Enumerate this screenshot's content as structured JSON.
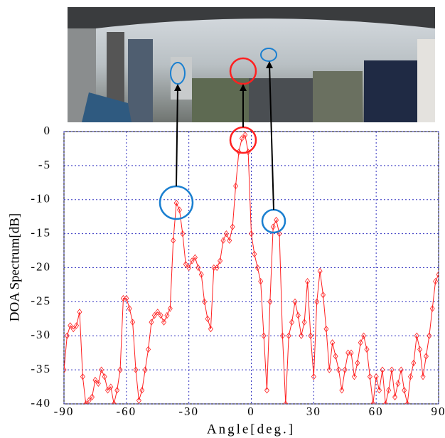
{
  "chart_data": {
    "type": "line",
    "x_label": "Angle[deg.]",
    "y_label": "DOA Spectrum[dB]",
    "xlim": [
      -90,
      90
    ],
    "ylim": [
      -40,
      0
    ],
    "xticks": [
      -90,
      -60,
      -30,
      0,
      30,
      60,
      90
    ],
    "yticks": [
      0,
      -5,
      -10,
      -15,
      -20,
      -25,
      -30,
      -35,
      -40
    ],
    "grid": true,
    "series": [
      {
        "color": "#ff2020",
        "x": [
          -90,
          -88.5,
          -87,
          -85.5,
          -84,
          -82.5,
          -81,
          -79.5,
          -78,
          -76.5,
          -75,
          -73.5,
          -72,
          -70.5,
          -69,
          -67.5,
          -66,
          -64.5,
          -63,
          -61.5,
          -60,
          -58.5,
          -57,
          -55.5,
          -54,
          -52.5,
          -51,
          -49.5,
          -48,
          -46.5,
          -45,
          -43.5,
          -42,
          -40.5,
          -39,
          -37.5,
          -36,
          -34.5,
          -33,
          -31.5,
          -30,
          -28.5,
          -27,
          -25.5,
          -24,
          -22.5,
          -21,
          -19.5,
          -18,
          -16.5,
          -15,
          -13.5,
          -12,
          -10.5,
          -9,
          -7.5,
          -6,
          -4.5,
          -3,
          -1.5,
          0,
          1.5,
          3,
          4.5,
          6,
          7.5,
          9,
          10.5,
          12,
          13.5,
          15,
          16.5,
          18,
          19.5,
          21,
          22.5,
          24,
          25.5,
          27,
          28.5,
          30,
          31.5,
          33,
          34.5,
          36,
          37.5,
          39,
          40.5,
          42,
          43.5,
          45,
          46.5,
          48,
          49.5,
          51,
          52.5,
          54,
          55.5,
          57,
          58.5,
          60,
          61.5,
          63,
          64.5,
          66,
          67.5,
          69,
          70.5,
          72,
          73.5,
          75,
          76.5,
          78,
          79.5,
          81,
          82.5,
          84,
          85.5,
          87,
          88.5,
          90
        ],
        "values": [
          -35,
          -30,
          -28.5,
          -29,
          -28.5,
          -26.5,
          -36,
          -40,
          -39.5,
          -39,
          -36.5,
          -37,
          -35,
          -36,
          -38,
          -37.5,
          -40,
          -38,
          -35,
          -24.5,
          -24.5,
          -26,
          -28,
          -35,
          -39.5,
          -38,
          -35,
          -32,
          -28,
          -27,
          -26.5,
          -27,
          -28,
          -27,
          -26,
          -16,
          -10.5,
          -11.5,
          -15,
          -19.5,
          -20,
          -19,
          -18.5,
          -20,
          -21,
          -25,
          -27.5,
          -29,
          -20,
          -20,
          -19,
          -16,
          -15,
          -16,
          -14,
          -8,
          -3,
          -1,
          -0.5,
          -3,
          -15,
          -18,
          -20,
          -22,
          -30,
          -38,
          -25,
          -14,
          -13,
          -15,
          -30,
          -40,
          -30,
          -28,
          -25,
          -27,
          -30,
          -28,
          -22,
          -30,
          -36,
          -25,
          -20.5,
          -24,
          -29,
          -35,
          -31,
          -33,
          -35,
          -38,
          -35,
          -32.5,
          -32.5,
          -36,
          -34,
          -31,
          -30,
          -32,
          -36,
          -40,
          -36,
          -38,
          -35,
          -40,
          -38,
          -35,
          -39,
          -37,
          -35,
          -38,
          -40,
          -36,
          -34,
          -30,
          -32,
          -36,
          -33,
          -30,
          -26,
          -22,
          -21
        ]
      }
    ]
  }
}
